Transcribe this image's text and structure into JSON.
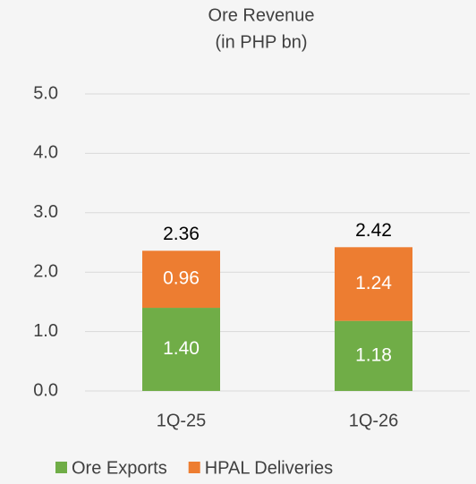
{
  "chart_data": {
    "type": "stacked_bar",
    "title": "Ore Revenue",
    "subtitle": "(in PHP bn)",
    "categories": [
      "1Q-25",
      "1Q-26"
    ],
    "series": [
      {
        "name": "Ore Exports",
        "color": "#70ad47",
        "values": [
          1.4,
          1.18
        ],
        "value_labels": [
          "1.40",
          "1.18"
        ]
      },
      {
        "name": "HPAL Deliveries",
        "color": "#ed7d31",
        "values": [
          0.96,
          1.24
        ],
        "value_labels": [
          "0.96",
          "1.24"
        ]
      }
    ],
    "totals": [
      2.36,
      2.42
    ],
    "ylim": [
      0,
      5
    ],
    "yticks": [
      {
        "value": 0,
        "label": "0.0"
      },
      {
        "value": 1,
        "label": "1.0"
      },
      {
        "value": 2,
        "label": "2.0"
      },
      {
        "value": 3,
        "label": "3.0"
      },
      {
        "value": 4,
        "label": "4.0"
      },
      {
        "value": 5,
        "label": "5.0"
      }
    ],
    "grid": true,
    "legend": "bottom"
  }
}
